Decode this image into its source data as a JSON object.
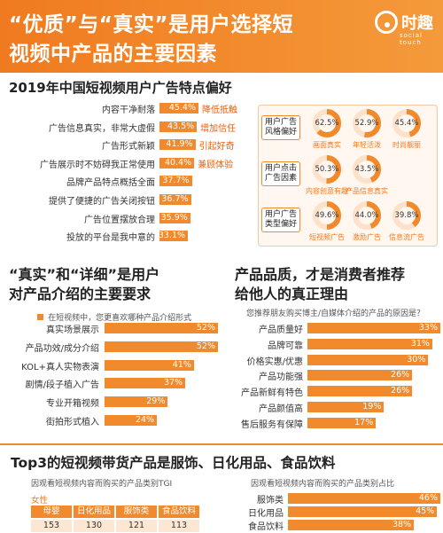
{
  "header": {
    "title_line1": "“优质”与“真实”是用户选择短",
    "title_line2": "视频中产品的主要因素",
    "logo_name": "时趣",
    "logo_sub": "social touch"
  },
  "colors": {
    "accent": "#f08a2c",
    "header": "#f07a1f",
    "tag": "#e8600e"
  },
  "section1": {
    "title": "2019年中国短视频用户广告特点偏好"
  },
  "section2": {
    "title_line1": "“真实”和“详细”是用户",
    "title_line2": "对产品介绍的主要要求",
    "legend": "在短视频中，您更喜欢哪种产品介绍形式"
  },
  "section3": {
    "title_line1": "产品品质，才是消费者推荐",
    "title_line2": "给他人的真正理由",
    "subtitle": "您推荐朋友购买博主/自媒体介绍的产品的原因是？"
  },
  "section4": {
    "title": "Top3的短视频带货产品是服饰、日化用品、食品饮料",
    "left_subtitle": "因观看短视频内容而购买的产品类别TGI",
    "right_subtitle": "因观看短视频内容而购买的产品类别占比",
    "tgi_group_label": "女性",
    "tgi_headers": [
      "母婴",
      "日化用品",
      "服饰类",
      "食品饮料"
    ],
    "tgi_values": [
      "153",
      "130",
      "121",
      "113"
    ]
  },
  "right_panel": {
    "groups": [
      {
        "label": "用户广告风格偏好",
        "pies": [
          {
            "value": "62.5%",
            "caption": "画面真实"
          },
          {
            "value": "52.9%",
            "caption": "年轻活泼"
          },
          {
            "value": "45.4%",
            "caption": "时尚靓丽"
          }
        ]
      },
      {
        "label": "用户点击广告因素",
        "pies": [
          {
            "value": "50.3%",
            "caption": "内容创意有趣"
          },
          {
            "value": "43.5%",
            "caption": "产品信息真实"
          }
        ]
      },
      {
        "label": "用户广告类型偏好",
        "pies": [
          {
            "value": "49.6%",
            "caption": "短视频广告"
          },
          {
            "value": "44.0%",
            "caption": "激励广告"
          },
          {
            "value": "39.8%",
            "caption": "信息流广告"
          }
        ]
      }
    ]
  },
  "chart_data": [
    {
      "type": "bar",
      "title": "2019年中国短视频用户广告特点偏好",
      "orientation": "horizontal",
      "categories": [
        "内容干净耐落",
        "广告信息真实，非常大虚假",
        "广告形式新颖",
        "广告展示时不妨碍我正常使用",
        "品牌产品特点概括全面",
        "提供了便捷的广告关闭按钮",
        "广告位置摆放合理",
        "投放的平台是我中意的"
      ],
      "values": [
        45.4,
        43.5,
        41.9,
        40.4,
        37.7,
        36.7,
        35.9,
        33.1
      ],
      "value_labels": [
        "45.4%",
        "43.5%",
        "41.9%",
        "40.4%",
        "37.7%",
        "36.7%",
        "35.9%",
        "33.1%"
      ],
      "annotations": [
        "降低抵触",
        "增加信任",
        "引起好奇",
        "兼顾体验",
        "",
        "",
        "",
        ""
      ]
    },
    {
      "type": "pie",
      "title": "用户广告风格偏好",
      "series": [
        {
          "values": [
            62.5,
            52.9,
            45.4
          ]
        }
      ],
      "categories": [
        "画面真实",
        "年轻活泼",
        "时尚靓丽"
      ]
    },
    {
      "type": "pie",
      "title": "用户点击广告因素",
      "series": [
        {
          "values": [
            50.3,
            43.5
          ]
        }
      ],
      "categories": [
        "内容创意有趣",
        "产品信息真实"
      ]
    },
    {
      "type": "pie",
      "title": "用户广告类型偏好",
      "series": [
        {
          "values": [
            49.6,
            44.0,
            39.8
          ]
        }
      ],
      "categories": [
        "短视频广告",
        "激励广告",
        "信息流广告"
      ]
    },
    {
      "type": "bar",
      "orientation": "horizontal",
      "title": "在短视频中，您更喜欢哪种产品介绍形式",
      "categories": [
        "真实场景展示",
        "产品功效/成分介绍",
        "KOL+真人实物表演",
        "剧情/段子植入广告",
        "专业开箱视频",
        "街拍形式植入"
      ],
      "values": [
        52,
        52,
        41,
        37,
        29,
        24
      ],
      "value_labels": [
        "52%",
        "52%",
        "41%",
        "37%",
        "29%",
        "24%"
      ]
    },
    {
      "type": "bar",
      "orientation": "horizontal",
      "title": "您推荐朋友购买博主/自媒体介绍的产品的原因是？",
      "categories": [
        "产品质量好",
        "品牌可靠",
        "价格实惠/优惠",
        "产品功能强",
        "产品新鲜有特色",
        "产品颜值高",
        "售后服务有保障"
      ],
      "values": [
        33,
        31,
        30,
        26,
        26,
        19,
        17
      ],
      "value_labels": [
        "33%",
        "31%",
        "30%",
        "26%",
        "26%",
        "19%",
        "17%"
      ]
    },
    {
      "type": "table",
      "title": "因观看短视频内容而购买的产品类别TGI",
      "categories": [
        "母婴",
        "日化用品",
        "服饰类",
        "食品饮料"
      ],
      "series": [
        {
          "name": "女性",
          "values": [
            153,
            130,
            121,
            113
          ]
        }
      ]
    },
    {
      "type": "bar",
      "orientation": "horizontal",
      "title": "因观看短视频内容而购买的产品类别占比",
      "categories": [
        "服饰类",
        "日化用品",
        "食品饮料"
      ],
      "values": [
        46,
        45,
        38
      ],
      "value_labels": [
        "46%",
        "45%",
        "38%"
      ]
    }
  ]
}
